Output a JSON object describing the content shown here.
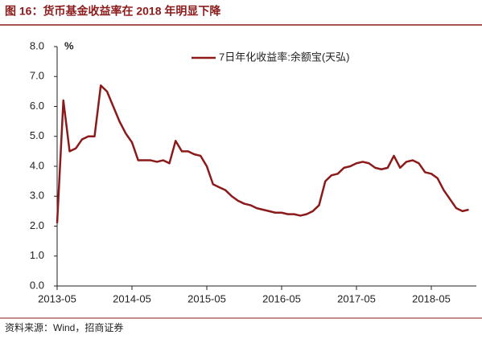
{
  "chart_data": {
    "type": "line",
    "title": "图 16：货币基金收益率在 2018 年明显下降",
    "source": "资料来源：Wind，招商证券",
    "y_unit": "%",
    "x": [
      "2013-05",
      "2013-06",
      "2013-07",
      "2013-08",
      "2013-09",
      "2013-10",
      "2013-11",
      "2013-12",
      "2014-01",
      "2014-02",
      "2014-03",
      "2014-04",
      "2014-05",
      "2014-06",
      "2014-07",
      "2014-08",
      "2014-09",
      "2014-10",
      "2014-11",
      "2014-12",
      "2015-01",
      "2015-02",
      "2015-03",
      "2015-04",
      "2015-05",
      "2015-06",
      "2015-07",
      "2015-08",
      "2015-09",
      "2015-10",
      "2015-11",
      "2015-12",
      "2016-01",
      "2016-02",
      "2016-03",
      "2016-04",
      "2016-05",
      "2016-06",
      "2016-07",
      "2016-08",
      "2016-09",
      "2016-10",
      "2016-11",
      "2016-12",
      "2017-01",
      "2017-02",
      "2017-03",
      "2017-04",
      "2017-05",
      "2017-06",
      "2017-07",
      "2017-08",
      "2017-09",
      "2017-10",
      "2017-11",
      "2017-12",
      "2018-01",
      "2018-02",
      "2018-03",
      "2018-04",
      "2018-05",
      "2018-06",
      "2018-07",
      "2018-08",
      "2018-09",
      "2018-10",
      "2018-11"
    ],
    "series": [
      {
        "name": "7日年化收益率:余额宝(天弘)",
        "color": "#8c1a1a",
        "values": [
          2.1,
          6.2,
          4.5,
          4.6,
          4.9,
          5.0,
          5.0,
          6.7,
          6.5,
          6.0,
          5.5,
          5.1,
          4.8,
          4.2,
          4.2,
          4.2,
          4.15,
          4.2,
          4.1,
          4.85,
          4.5,
          4.5,
          4.4,
          4.35,
          4.0,
          3.4,
          3.3,
          3.2,
          3.0,
          2.85,
          2.75,
          2.7,
          2.6,
          2.55,
          2.5,
          2.45,
          2.45,
          2.4,
          2.4,
          2.35,
          2.4,
          2.5,
          2.7,
          3.5,
          3.7,
          3.75,
          3.95,
          4.0,
          4.1,
          4.15,
          4.1,
          3.95,
          3.9,
          3.95,
          4.35,
          3.95,
          4.15,
          4.2,
          4.1,
          3.8,
          3.75,
          3.6,
          3.2,
          2.9,
          2.6,
          2.5,
          2.55
        ]
      }
    ],
    "ylim": [
      0,
      8
    ],
    "yticks": [
      {
        "value": 0,
        "label": "0.0"
      },
      {
        "value": 1,
        "label": "1.0"
      },
      {
        "value": 2,
        "label": "2.0"
      },
      {
        "value": 3,
        "label": "3.0"
      },
      {
        "value": 4,
        "label": "4.0"
      },
      {
        "value": 5,
        "label": "5.0"
      },
      {
        "value": 6,
        "label": "6.0"
      },
      {
        "value": 7,
        "label": "7.0"
      },
      {
        "value": 8,
        "label": "8.0"
      }
    ],
    "legend": "top-right"
  }
}
